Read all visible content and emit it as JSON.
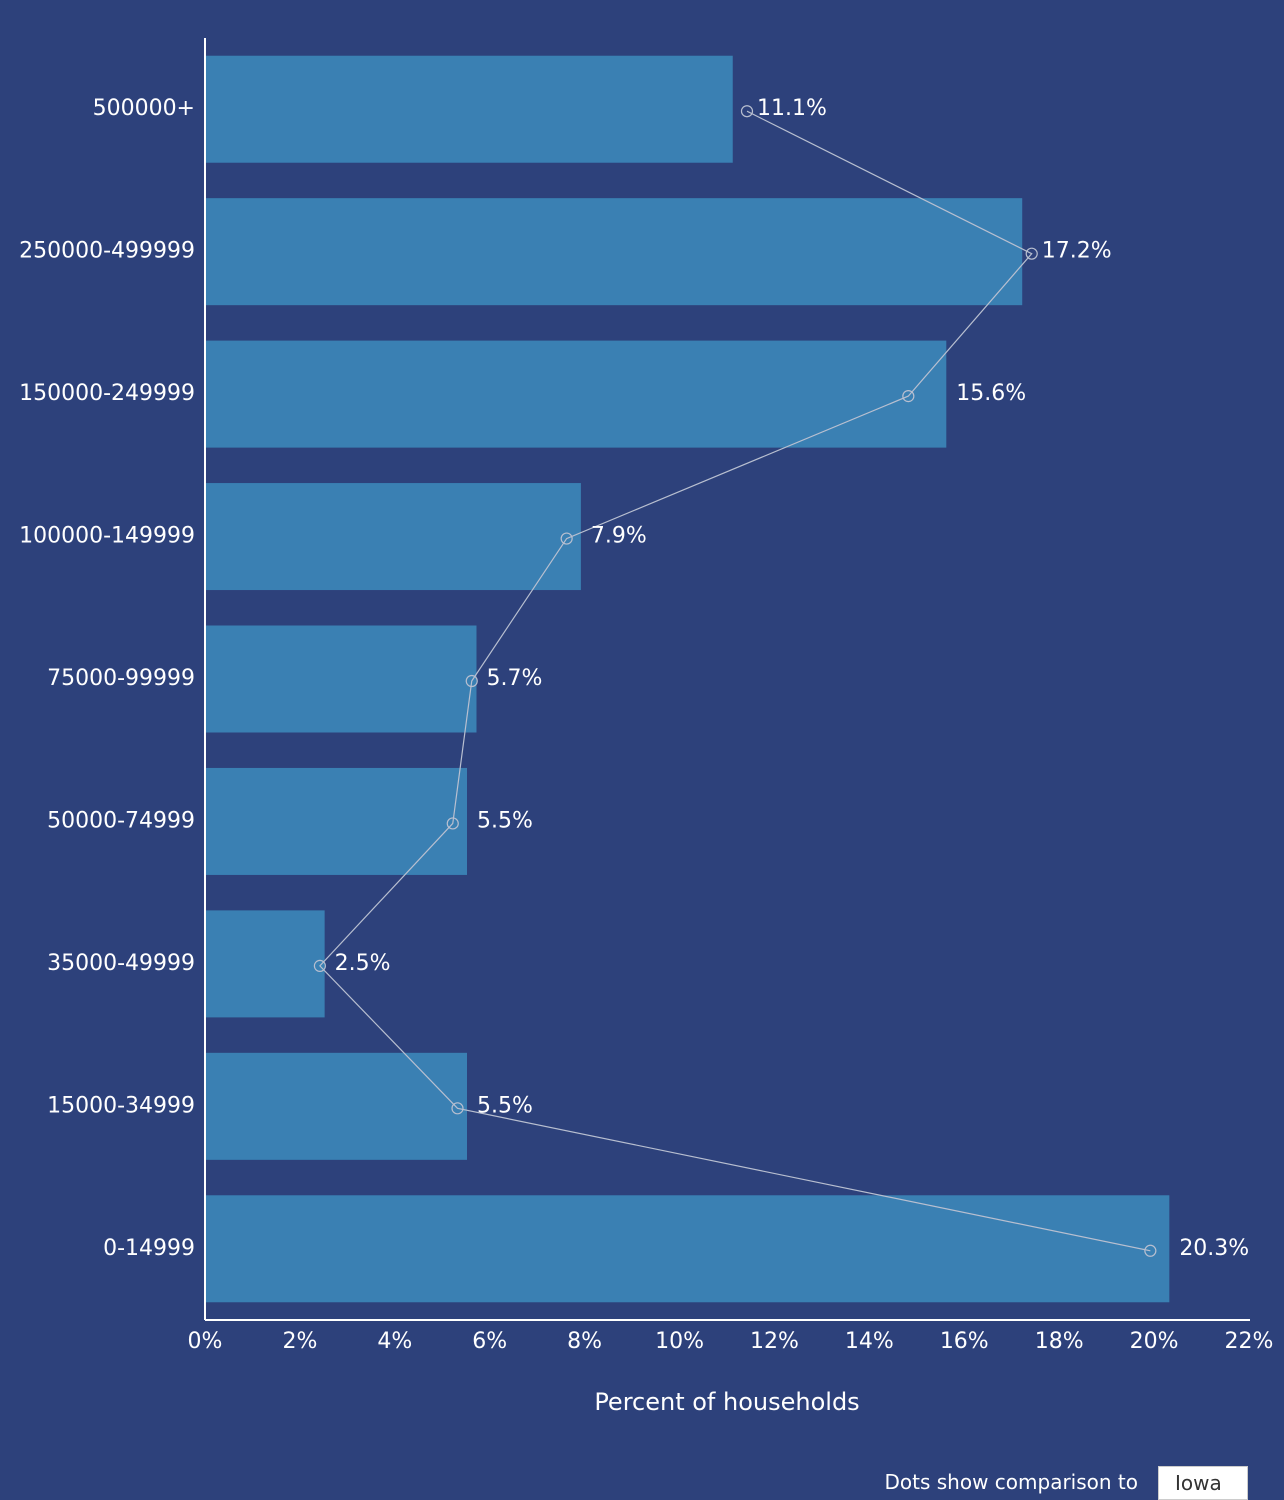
{
  "chart_data": {
    "type": "bar",
    "orientation": "horizontal",
    "categories": [
      "500000+",
      "250000-499999",
      "150000-249999",
      "100000-149999",
      "75000-99999",
      "50000-74999",
      "35000-49999",
      "15000-34999",
      "0-14999"
    ],
    "values": [
      11.1,
      17.2,
      15.6,
      7.9,
      5.7,
      5.5,
      2.5,
      5.5,
      20.3
    ],
    "value_labels": [
      "11.1%",
      "17.2%",
      "15.6%",
      "7.9%",
      "5.7%",
      "5.5%",
      "2.5%",
      "5.5%",
      "20.3%"
    ],
    "comparison_values": [
      11.4,
      17.4,
      14.8,
      7.6,
      5.6,
      5.2,
      2.4,
      5.3,
      19.9
    ],
    "xlim": [
      0,
      22
    ],
    "x_ticks": [
      0,
      2,
      4,
      6,
      8,
      10,
      12,
      14,
      16,
      18,
      20,
      22
    ],
    "x_tick_labels": [
      "0%",
      "2%",
      "4%",
      "6%",
      "8%",
      "10%",
      "12%",
      "14%",
      "16%",
      "18%",
      "20%",
      "22%"
    ],
    "xlabel": "Percent of households",
    "grid": false,
    "colors": {
      "background": "#2d417b",
      "bar": "#3a80b3",
      "comparison_line": "#b8bfd0",
      "text": "#ffffff"
    }
  },
  "comparison": {
    "label": "Dots show comparison to",
    "selected": "Iowa"
  }
}
